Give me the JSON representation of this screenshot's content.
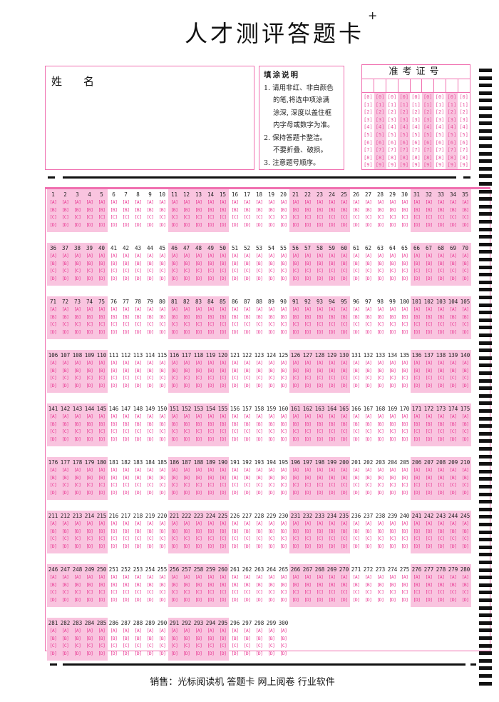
{
  "title": "人才测评答题卡",
  "plus_mark": "+",
  "name_label": "姓名",
  "instructions": {
    "heading": "填涂说明",
    "lines": [
      "1. 请用非红、非白颜色",
      "的笔,将选中项涂满",
      "涂深, 深度以盖住框",
      "内字母或数字为准。",
      "2. 保持答题卡整洁。",
      "不要折叠、破损。",
      "3. 注意题号顺序。"
    ]
  },
  "exam_id": {
    "label": "准考证号",
    "columns": 9,
    "digits": [
      "0",
      "1",
      "2",
      "3",
      "4",
      "5",
      "6",
      "7",
      "8",
      "9"
    ]
  },
  "answer_sheet": {
    "total_questions": 300,
    "per_row": 35,
    "group_size": 5,
    "options": [
      "A",
      "B",
      "C",
      "D"
    ]
  },
  "footer": "销售：光标阅读机 答题卡 网上阅卷 行业软件",
  "colors": {
    "pink": "#f9c4df",
    "border": "#f070b0",
    "option_text": "#e8308f"
  }
}
